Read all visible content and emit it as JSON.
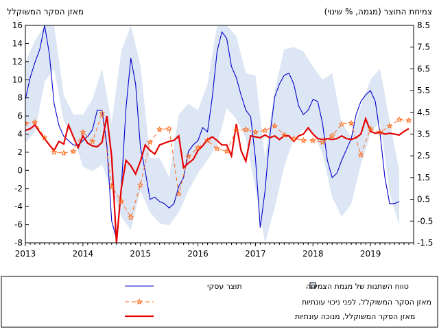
{
  "header": {
    "left_title": "מאזן הסקר המשוקלל",
    "right_title": "צמיחת התוצר (מגמה, % שינוי)"
  },
  "legend": {
    "band_label": "טווח השתנות של מגמת הצמיחה",
    "line_label": "תוצר עסקי",
    "sa_label": "מאזן הסקר המשוקלל, מנוכה עונתיות",
    "nsa_label": "מאזן הסקר המשוקלל, לפני ניכוי עונתיות"
  },
  "chart_data": {
    "type": "line",
    "x_label": "",
    "x_ticks": [
      "2013",
      "2014",
      "2015",
      "2016",
      "2017",
      "2018",
      "2019"
    ],
    "x_range": [
      "2013-01",
      "2019-10"
    ],
    "left_axis": {
      "range": [
        -8,
        16
      ],
      "ticks": [
        "-8",
        "-6",
        "-4",
        "-2",
        "0",
        "2",
        "4",
        "6",
        "8",
        "10",
        "12",
        "14",
        "16"
      ]
    },
    "right_axis": {
      "range": [
        -1.5,
        8.5
      ],
      "ticks": [
        "-1.5",
        "-0.5",
        "0.5",
        "1.5",
        "2.5",
        "3.5",
        "4.5",
        "5.5",
        "6.5",
        "7.5",
        "8.5"
      ]
    },
    "colors": {
      "band": "#dce6f4",
      "business_gdp": "#0000cc",
      "survey_sa": "#e60000",
      "survey_nsa": "#ff6a1a"
    },
    "series": [
      {
        "key": "survey_sa",
        "axis": "left",
        "x": [
          "2013-01",
          "2013-02",
          "2013-03",
          "2013-04",
          "2013-05",
          "2013-06",
          "2013-07",
          "2013-08",
          "2013-09",
          "2013-10",
          "2013-11",
          "2013-12",
          "2014-01",
          "2014-02",
          "2014-03",
          "2014-04",
          "2014-05",
          "2014-06",
          "2014-07",
          "2014-08",
          "2014-09",
          "2014-10",
          "2014-11",
          "2014-12",
          "2015-01",
          "2015-02",
          "2015-03",
          "2015-04",
          "2015-05",
          "2015-06",
          "2015-07",
          "2015-08",
          "2015-09",
          "2015-10",
          "2015-11",
          "2015-12",
          "2016-01",
          "2016-02",
          "2016-03",
          "2016-04",
          "2016-05",
          "2016-06",
          "2016-07",
          "2016-08",
          "2016-09",
          "2016-10",
          "2016-11",
          "2016-12",
          "2017-01",
          "2017-02",
          "2017-03",
          "2017-04",
          "2017-05",
          "2017-06",
          "2017-07",
          "2017-08",
          "2017-09",
          "2017-10",
          "2017-11",
          "2017-12",
          "2018-01",
          "2018-02",
          "2018-03",
          "2018-04",
          "2018-05",
          "2018-06",
          "2018-07",
          "2018-08",
          "2018-09",
          "2018-10",
          "2018-11",
          "2018-12",
          "2019-01",
          "2019-02",
          "2019-03",
          "2019-04",
          "2019-05",
          "2019-06",
          "2019-07",
          "2019-08",
          "2019-09"
        ],
        "values": [
          4.4,
          4.6,
          5.0,
          4.2,
          3.5,
          2.8,
          2.2,
          3.2,
          2.9,
          5.0,
          3.7,
          2.5,
          3.8,
          3.0,
          2.7,
          2.6,
          3.1,
          6.0,
          1.5,
          -8.0,
          -2.0,
          1.1,
          0.5,
          -0.4,
          1.0,
          2.8,
          2.2,
          1.8,
          2.8,
          3.0,
          3.2,
          3.3,
          3.8,
          0.3,
          0.8,
          1.2,
          2.2,
          2.7,
          3.4,
          3.7,
          3.3,
          2.8,
          2.8,
          1.6,
          5.1,
          2.2,
          1.0,
          3.8,
          3.7,
          3.6,
          3.9,
          3.6,
          3.8,
          3.4,
          3.8,
          3.8,
          3.2,
          3.8,
          4.0,
          4.7,
          4.0,
          3.5,
          3.4,
          3.5,
          3.4,
          3.5,
          3.8,
          3.5,
          3.4,
          3.6,
          4.0,
          5.7,
          4.3,
          4.1,
          4.2,
          4.0,
          4.1,
          4.0,
          3.9,
          4.3,
          4.6
        ]
      },
      {
        "key": "survey_nsa",
        "axis": "left",
        "x": [
          "2013-01",
          "2013-03",
          "2013-05",
          "2013-07",
          "2013-09",
          "2013-11",
          "2014-01",
          "2014-03",
          "2014-05",
          "2014-07",
          "2014-09",
          "2014-11",
          "2015-01",
          "2015-03",
          "2015-05",
          "2015-07",
          "2015-09",
          "2015-11",
          "2016-01",
          "2016-03",
          "2016-05",
          "2016-07",
          "2016-09",
          "2016-11",
          "2017-01",
          "2017-03",
          "2017-05",
          "2017-07",
          "2017-09",
          "2017-11",
          "2018-01",
          "2018-03",
          "2018-05",
          "2018-07",
          "2018-09",
          "2018-11",
          "2019-01",
          "2019-03",
          "2019-05",
          "2019-07",
          "2019-09"
        ],
        "values": [
          5.2,
          5.3,
          3.6,
          2.0,
          1.9,
          2.1,
          4.2,
          3.2,
          6.3,
          -1.8,
          -3.4,
          -5.2,
          -1.6,
          3.1,
          4.5,
          4.6,
          -2.6,
          1.5,
          2.5,
          3.3,
          2.4,
          2.1,
          4.4,
          4.5,
          4.2,
          4.4,
          4.9,
          3.9,
          3.5,
          3.3,
          3.3,
          3.1,
          3.8,
          5.1,
          5.2,
          1.7,
          4.6,
          4.2,
          4.9,
          5.6,
          5.5
        ]
      },
      {
        "key": "business_gdp",
        "axis": "right",
        "x": [
          "2013-01",
          "2013-02",
          "2013-03",
          "2013-04",
          "2013-05",
          "2013-06",
          "2013-07",
          "2013-08",
          "2013-09",
          "2013-10",
          "2013-11",
          "2013-12",
          "2014-01",
          "2014-02",
          "2014-03",
          "2014-04",
          "2014-05",
          "2014-06",
          "2014-07",
          "2014-08",
          "2014-09",
          "2014-10",
          "2014-11",
          "2014-12",
          "2015-01",
          "2015-02",
          "2015-03",
          "2015-04",
          "2015-05",
          "2015-06",
          "2015-07",
          "2015-08",
          "2015-09",
          "2015-10",
          "2015-11",
          "2015-12",
          "2016-01",
          "2016-02",
          "2016-03",
          "2016-04",
          "2016-05",
          "2016-06",
          "2016-07",
          "2016-08",
          "2016-09",
          "2016-10",
          "2016-11",
          "2016-12",
          "2017-01",
          "2017-02",
          "2017-03",
          "2017-04",
          "2017-05",
          "2017-06",
          "2017-07",
          "2017-08",
          "2017-09",
          "2017-10",
          "2017-11",
          "2017-12",
          "2018-01",
          "2018-02",
          "2018-03",
          "2018-04",
          "2018-05",
          "2018-06",
          "2018-07",
          "2018-08",
          "2018-09",
          "2018-10",
          "2018-11",
          "2018-12",
          "2019-01",
          "2019-02",
          "2019-03",
          "2019-04",
          "2019-05",
          "2019-06",
          "2019-07"
        ],
        "values": [
          5.1,
          6.1,
          6.8,
          7.4,
          8.5,
          7.2,
          4.9,
          3.9,
          3.4,
          3.2,
          3.0,
          3.0,
          3.2,
          3.4,
          3.7,
          4.6,
          4.6,
          3.0,
          -0.5,
          -1.3,
          1.0,
          4.7,
          7.0,
          5.8,
          2.9,
          1.8,
          0.5,
          0.6,
          0.4,
          0.3,
          0.1,
          0.3,
          1.1,
          1.5,
          2.7,
          3.0,
          3.2,
          3.8,
          3.6,
          5.2,
          7.3,
          8.2,
          7.9,
          6.6,
          6.1,
          5.3,
          4.6,
          4.3,
          2.4,
          -0.8,
          0.9,
          3.4,
          5.2,
          5.8,
          6.2,
          6.3,
          5.8,
          4.8,
          4.4,
          4.6,
          5.1,
          5.0,
          4.0,
          2.3,
          1.5,
          1.7,
          2.3,
          2.8,
          3.3,
          4.4,
          5.0,
          5.3,
          5.5,
          5.0,
          3.5,
          1.5,
          0.3,
          0.3,
          0.4
        ]
      },
      {
        "key": "band",
        "axis": "right",
        "x": [
          "2013-01",
          "2013-03",
          "2013-05",
          "2013-07",
          "2013-09",
          "2013-11",
          "2014-01",
          "2014-03",
          "2014-05",
          "2014-07",
          "2014-09",
          "2014-11",
          "2015-01",
          "2015-03",
          "2015-05",
          "2015-07",
          "2015-09",
          "2015-11",
          "2016-01",
          "2016-03",
          "2016-05",
          "2016-07",
          "2016-09",
          "2016-11",
          "2017-01",
          "2017-03",
          "2017-05",
          "2017-07",
          "2017-09",
          "2017-11",
          "2018-01",
          "2018-03",
          "2018-05",
          "2018-07",
          "2018-09",
          "2018-11",
          "2019-01",
          "2019-03",
          "2019-05",
          "2019-07"
        ],
        "upper": [
          6.8,
          7.8,
          8.5,
          8.5,
          5.3,
          4.4,
          4.4,
          5.1,
          6.5,
          4.0,
          7.3,
          8.5,
          6.7,
          2.4,
          2.4,
          1.5,
          4.4,
          4.9,
          4.6,
          5.8,
          8.5,
          8.5,
          8.0,
          6.3,
          6.2,
          2.4,
          5.5,
          7.4,
          7.5,
          7.3,
          6.6,
          6.0,
          6.3,
          4.0,
          3.4,
          4.8,
          6.0,
          6.5,
          4.1,
          1.8
        ],
        "lower": [
          3.1,
          3.6,
          5.9,
          6.5,
          4.1,
          3.4,
          2.0,
          1.8,
          2.1,
          0.9,
          -0.3,
          -0.9,
          0.9,
          -0.1,
          -0.6,
          -0.7,
          -0.1,
          0.9,
          1.7,
          2.3,
          3.0,
          4.7,
          4.2,
          3.3,
          1.0,
          -1.5,
          0.1,
          2.0,
          3.3,
          3.7,
          3.6,
          2.6,
          0.6,
          -0.3,
          0.3,
          2.1,
          3.5,
          4.1,
          0.8,
          -0.7
        ]
      }
    ]
  }
}
